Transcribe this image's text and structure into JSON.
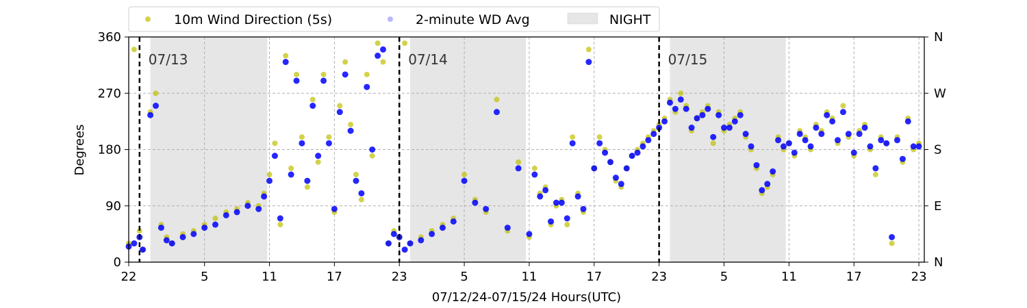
{
  "chart_data": {
    "type": "scatter",
    "xlabel": "07/12/24-07/15/24  Hours(UTC)",
    "ylabel": "Degrees",
    "xlim": [
      22,
      95.5
    ],
    "ylim": [
      0,
      360
    ],
    "x_ticks": [
      {
        "hour": 22,
        "label": "22"
      },
      {
        "hour": 29,
        "label": "5"
      },
      {
        "hour": 35,
        "label": "11"
      },
      {
        "hour": 41,
        "label": "17"
      },
      {
        "hour": 47,
        "label": "23"
      },
      {
        "hour": 53,
        "label": "5"
      },
      {
        "hour": 59,
        "label": "11"
      },
      {
        "hour": 65,
        "label": "17"
      },
      {
        "hour": 71,
        "label": "23"
      },
      {
        "hour": 77,
        "label": "5"
      },
      {
        "hour": 83,
        "label": "11"
      },
      {
        "hour": 89,
        "label": "17"
      },
      {
        "hour": 95,
        "label": "23"
      }
    ],
    "y_ticks": [
      0,
      90,
      180,
      270,
      360
    ],
    "y2_ticks": [
      {
        "value": 0,
        "label": "N"
      },
      {
        "value": 90,
        "label": "E"
      },
      {
        "value": 180,
        "label": "S"
      },
      {
        "value": 270,
        "label": "W"
      },
      {
        "value": 360,
        "label": "N"
      }
    ],
    "grid": true,
    "legend_position": "top",
    "legend": [
      {
        "label": "10m Wind Direction (5s)",
        "color": "#bfbf00",
        "kind": "marker"
      },
      {
        "label": "2-minute WD Avg",
        "color": "#0000ff",
        "kind": "marker-faded"
      },
      {
        "label": "NIGHT",
        "color": "#e6e6e6",
        "kind": "patch"
      }
    ],
    "night_spans": [
      [
        24,
        34.8
      ],
      [
        48,
        58.7
      ],
      [
        72,
        82.7
      ]
    ],
    "day_markers": [
      {
        "hour": 23.0,
        "label": "07/13"
      },
      {
        "hour": 47.0,
        "label": "07/14"
      },
      {
        "hour": 71.0,
        "label": "07/15"
      }
    ],
    "series": [
      {
        "name": "10m Wind Direction (5s)",
        "color": "#bfbf00",
        "x": [
          22.0,
          22.5,
          23.0,
          23.3,
          24.0,
          24.5,
          25.0,
          25.5,
          26.0,
          27.0,
          28.0,
          29.0,
          30.0,
          31.0,
          32.0,
          33.0,
          34.0,
          34.5,
          35.0,
          35.5,
          36.0,
          36.5,
          37.0,
          37.5,
          38.0,
          38.5,
          39.0,
          39.5,
          40.0,
          40.5,
          41.0,
          41.5,
          42.0,
          42.5,
          43.0,
          43.5,
          44.0,
          44.5,
          45.0,
          45.5,
          46.0,
          46.5,
          47.0,
          47.5,
          48.0,
          49.0,
          50.0,
          51.0,
          52.0,
          53.0,
          54.0,
          55.0,
          56.0,
          57.0,
          58.0,
          59.0,
          59.5,
          60.0,
          60.5,
          61.0,
          61.5,
          62.0,
          62.5,
          63.0,
          63.5,
          64.0,
          64.5,
          65.0,
          65.5,
          66.0,
          66.5,
          67.0,
          67.5,
          68.0,
          68.5,
          69.0,
          69.5,
          70.0,
          70.5,
          71.0,
          71.5,
          72.0,
          72.5,
          73.0,
          73.5,
          74.0,
          74.5,
          75.0,
          75.5,
          76.0,
          76.5,
          77.0,
          77.5,
          78.0,
          78.5,
          79.0,
          79.5,
          80.0,
          80.5,
          81.0,
          81.5,
          82.0,
          82.5,
          83.0,
          83.5,
          84.0,
          84.5,
          85.0,
          85.5,
          86.0,
          86.5,
          87.0,
          87.5,
          88.0,
          88.5,
          89.0,
          89.5,
          90.0,
          90.5,
          91.0,
          91.5,
          92.0,
          92.5,
          93.0,
          93.5,
          94.0,
          94.5,
          95.0
        ],
        "values": [
          30,
          340,
          50,
          20,
          240,
          270,
          60,
          40,
          30,
          45,
          50,
          60,
          70,
          80,
          85,
          95,
          90,
          110,
          140,
          190,
          60,
          330,
          150,
          300,
          200,
          120,
          260,
          160,
          300,
          200,
          80,
          250,
          320,
          220,
          140,
          100,
          300,
          170,
          350,
          320,
          30,
          50,
          40,
          350,
          30,
          40,
          50,
          60,
          70,
          140,
          100,
          80,
          260,
          50,
          160,
          40,
          150,
          110,
          120,
          60,
          90,
          100,
          60,
          200,
          110,
          80,
          340,
          150,
          200,
          180,
          160,
          130,
          120,
          150,
          170,
          180,
          190,
          200,
          210,
          220,
          230,
          260,
          240,
          270,
          250,
          210,
          230,
          240,
          250,
          190,
          240,
          210,
          220,
          230,
          240,
          200,
          180,
          150,
          110,
          120,
          140,
          200,
          180,
          190,
          170,
          210,
          200,
          180,
          220,
          210,
          240,
          230,
          190,
          250,
          200,
          170,
          210,
          220,
          180,
          140,
          200,
          190,
          30,
          200,
          160,
          230,
          180,
          190
        ]
      },
      {
        "name": "2-minute WD Avg",
        "color": "#0000ff",
        "x": [
          22.0,
          22.5,
          23.0,
          23.3,
          24.0,
          24.5,
          25.0,
          25.5,
          26.0,
          27.0,
          28.0,
          29.0,
          30.0,
          31.0,
          32.0,
          33.0,
          34.0,
          34.5,
          35.0,
          35.5,
          36.0,
          36.5,
          37.0,
          37.5,
          38.0,
          38.5,
          39.0,
          39.5,
          40.0,
          40.5,
          41.0,
          41.5,
          42.0,
          42.5,
          43.0,
          43.5,
          44.0,
          44.5,
          45.0,
          45.5,
          46.0,
          46.5,
          47.0,
          47.5,
          48.0,
          49.0,
          50.0,
          51.0,
          52.0,
          53.0,
          54.0,
          55.0,
          56.0,
          57.0,
          58.0,
          59.0,
          59.5,
          60.0,
          60.5,
          61.0,
          61.5,
          62.0,
          62.5,
          63.0,
          63.5,
          64.0,
          64.5,
          65.0,
          65.5,
          66.0,
          66.5,
          67.0,
          67.5,
          68.0,
          68.5,
          69.0,
          69.5,
          70.0,
          70.5,
          71.0,
          71.5,
          72.0,
          72.5,
          73.0,
          73.5,
          74.0,
          74.5,
          75.0,
          75.5,
          76.0,
          76.5,
          77.0,
          77.5,
          78.0,
          78.5,
          79.0,
          79.5,
          80.0,
          80.5,
          81.0,
          81.5,
          82.0,
          82.5,
          83.0,
          83.5,
          84.0,
          84.5,
          85.0,
          85.5,
          86.0,
          86.5,
          87.0,
          87.5,
          88.0,
          88.5,
          89.0,
          89.5,
          90.0,
          90.5,
          91.0,
          91.5,
          92.0,
          92.5,
          93.0,
          93.5,
          94.0,
          94.5,
          95.0
        ],
        "values": [
          25,
          30,
          40,
          20,
          235,
          250,
          55,
          35,
          30,
          40,
          45,
          55,
          60,
          75,
          80,
          90,
          85,
          105,
          130,
          170,
          70,
          320,
          140,
          290,
          190,
          130,
          250,
          170,
          290,
          190,
          85,
          240,
          300,
          210,
          130,
          110,
          280,
          180,
          330,
          340,
          30,
          45,
          40,
          20,
          30,
          35,
          45,
          55,
          65,
          130,
          95,
          85,
          240,
          55,
          150,
          45,
          140,
          105,
          115,
          65,
          95,
          95,
          70,
          190,
          105,
          85,
          320,
          150,
          190,
          175,
          160,
          135,
          125,
          150,
          170,
          175,
          185,
          195,
          205,
          215,
          225,
          255,
          245,
          260,
          245,
          215,
          230,
          235,
          245,
          200,
          235,
          215,
          215,
          225,
          235,
          205,
          185,
          155,
          115,
          125,
          145,
          195,
          185,
          190,
          175,
          205,
          195,
          185,
          215,
          205,
          235,
          225,
          195,
          240,
          205,
          175,
          205,
          215,
          185,
          150,
          195,
          190,
          40,
          195,
          165,
          225,
          185,
          185
        ]
      }
    ]
  }
}
